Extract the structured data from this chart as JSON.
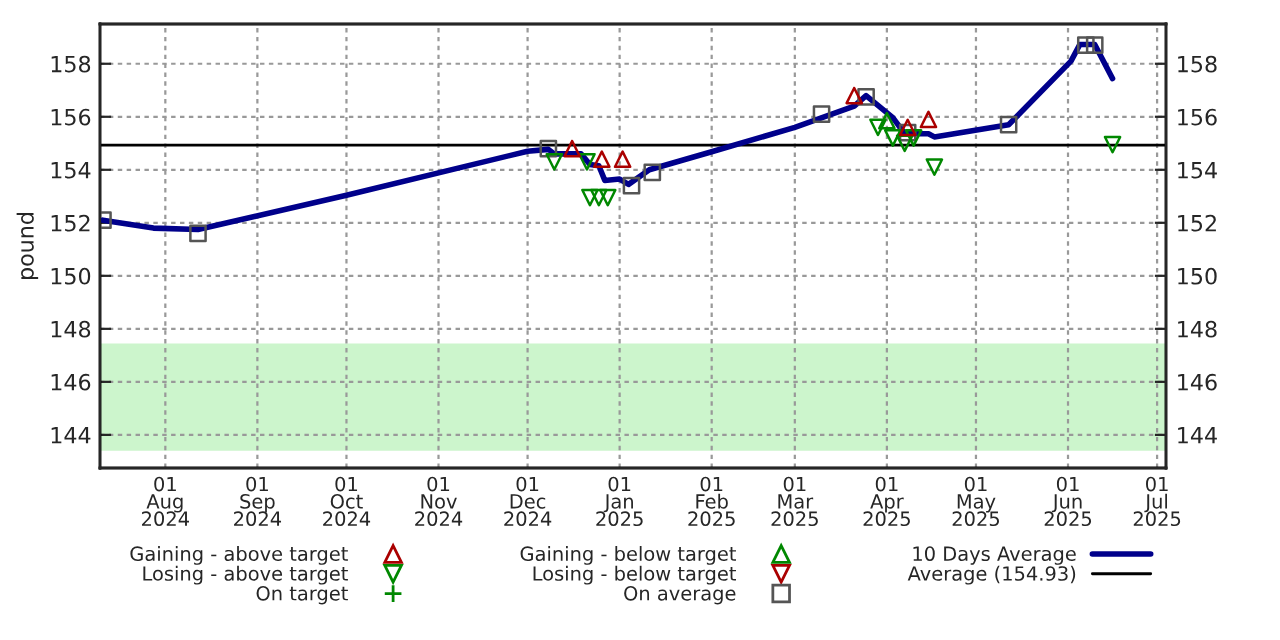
{
  "chart_data": {
    "type": "line",
    "ylabel": "pound",
    "xlim": [
      "2024-07-10",
      "2025-07-04"
    ],
    "xticks": [
      {
        "value": "2024-08-01",
        "label": "01\nAug\n2024"
      },
      {
        "value": "2024-09-01",
        "label": "01\nSep\n2024"
      },
      {
        "value": "2024-10-01",
        "label": "01\nOct\n2024"
      },
      {
        "value": "2024-11-01",
        "label": "01\nNov\n2024"
      },
      {
        "value": "2024-12-01",
        "label": "01\nDec\n2024"
      },
      {
        "value": "2025-01-01",
        "label": "01\nJan\n2025"
      },
      {
        "value": "2025-02-01",
        "label": "01\nFeb\n2025"
      },
      {
        "value": "2025-03-01",
        "label": "01\nMar\n2025"
      },
      {
        "value": "2025-04-01",
        "label": "01\nApr\n2025"
      },
      {
        "value": "2025-05-01",
        "label": "01\nMay\n2025"
      },
      {
        "value": "2025-06-01",
        "label": "01\nJun\n2025"
      },
      {
        "value": "2025-07-01",
        "label": "01\nJul\n2025"
      }
    ],
    "ylim": [
      142.75,
      159.5
    ],
    "yticks": [
      144,
      146,
      148,
      150,
      152,
      154,
      156,
      158
    ],
    "y2lim": [
      142.75,
      159.5
    ],
    "y2ticks": [
      144,
      146,
      148,
      150,
      152,
      154,
      156,
      158
    ],
    "grid": true,
    "legend": "bottom",
    "series": [
      {
        "name": "Gaining - above target",
        "type": "scatter",
        "marker": "triangle",
        "color": "#aa0000",
        "x": [
          "2024-12-16",
          "2024-12-26",
          "2025-01-02",
          "2025-03-21",
          "2025-04-08",
          "2025-04-15"
        ],
        "values": [
          154.8,
          154.4,
          154.4,
          156.8,
          155.6,
          155.9
        ]
      },
      {
        "name": "Losing - above target",
        "type": "scatter",
        "marker": "triangle_down",
        "color": "#008800",
        "x": [
          "2024-12-10",
          "2024-12-21",
          "2024-12-22",
          "2024-12-25",
          "2024-12-28",
          "2025-03-29",
          "2025-04-03",
          "2025-04-07",
          "2025-04-10",
          "2025-04-17",
          "2025-06-16"
        ],
        "values": [
          154.3,
          154.3,
          152.95,
          152.95,
          152.95,
          155.6,
          155.2,
          155.0,
          155.2,
          154.1,
          154.95
        ]
      },
      {
        "name": "On target",
        "type": "scatter",
        "marker": "cross",
        "color": "#008800"
      },
      {
        "name": "Gaining - below target",
        "type": "scatter",
        "marker": "triangle",
        "color": "#008800",
        "x": [
          "2025-04-01"
        ],
        "values": [
          155.85
        ]
      },
      {
        "name": "Losing - below target",
        "type": "scatter",
        "marker": "triangle_down",
        "color": "#aa0000"
      },
      {
        "name": "On average",
        "type": "scatter",
        "marker": "square",
        "color": "#555555",
        "x": [
          "2024-07-11",
          "2024-08-12",
          "2024-12-08",
          "2025-01-05",
          "2025-01-12",
          "2025-03-10",
          "2025-03-25",
          "2025-04-08",
          "2025-05-12",
          "2025-06-07",
          "2025-06-10"
        ],
        "values": [
          152.1,
          151.6,
          154.8,
          153.4,
          153.9,
          156.1,
          156.75,
          155.4,
          155.7,
          158.7,
          158.7
        ]
      },
      {
        "name": "10 Days Average",
        "marker": "none",
        "line_style": "solid",
        "color": "#00008b",
        "x": [
          "2024-07-11",
          "2024-07-28",
          "2024-08-12",
          "2024-10-01",
          "2024-12-01",
          "2024-12-08",
          "2024-12-10",
          "2024-12-19",
          "2024-12-22",
          "2024-12-25",
          "2024-12-27",
          "2025-01-01",
          "2025-01-04",
          "2025-01-11",
          "2025-02-01",
          "2025-03-01",
          "2025-03-21",
          "2025-03-25",
          "2025-04-03",
          "2025-04-07",
          "2025-04-15",
          "2025-04-17",
          "2025-05-12",
          "2025-06-02",
          "2025-06-05",
          "2025-06-10",
          "2025-06-16"
        ],
        "values": [
          152.1,
          151.8,
          151.75,
          153.04,
          154.7,
          154.77,
          154.6,
          154.6,
          154.2,
          154.15,
          153.6,
          153.65,
          153.45,
          154.0,
          154.68,
          155.6,
          156.4,
          156.8,
          155.97,
          155.36,
          155.36,
          155.24,
          155.7,
          158.1,
          158.73,
          158.73,
          157.44
        ]
      }
    ],
    "ref_lines": [
      {
        "axis": "y",
        "value": 154.93,
        "label": "Average (154.93)",
        "color": "#000000",
        "line_style": "solid"
      }
    ],
    "bands": [
      {
        "axis": "y",
        "from": 143.4,
        "to": 147.45,
        "color": "#ccf5cc"
      }
    ]
  }
}
